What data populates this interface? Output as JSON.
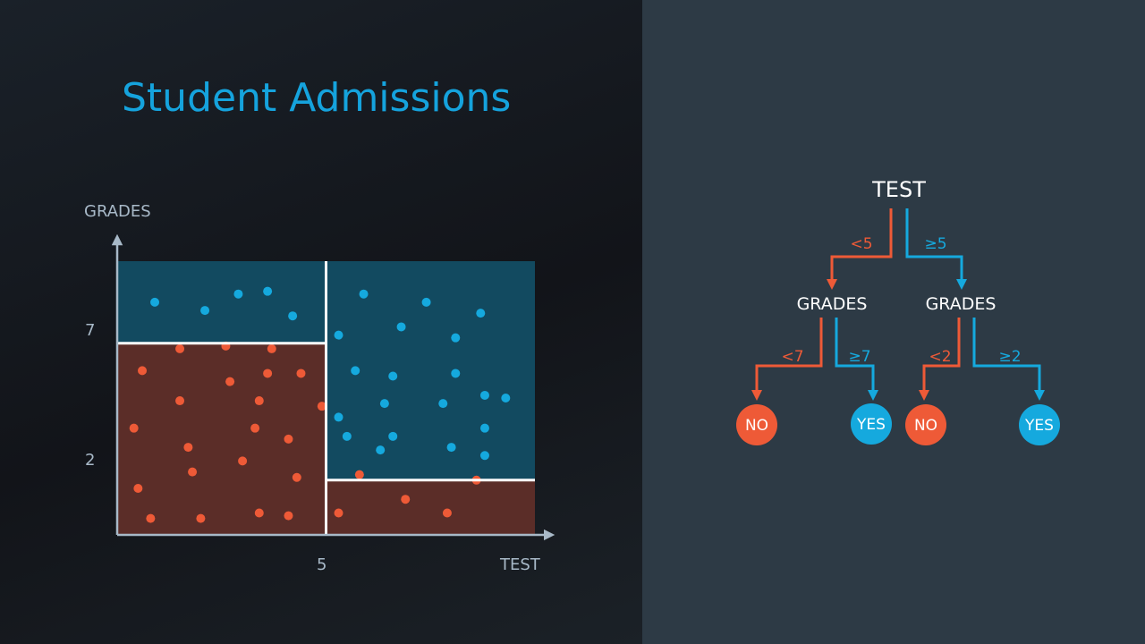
{
  "title": "Student Admissions",
  "colors": {
    "blue": "#15a9de",
    "red": "#ee5a37",
    "blue_region": "#124a60",
    "red_region": "#5b2d28",
    "axis": "#a8b9c8",
    "divider": "#ffffff",
    "tree_text": "#ffffff"
  },
  "chart_data": {
    "type": "scatter",
    "xlabel": "TEST",
    "ylabel": "GRADES",
    "xlim": [
      0,
      10
    ],
    "ylim": [
      0,
      10
    ],
    "x_ticks": [
      "5"
    ],
    "y_ticks": [
      "7",
      "2"
    ],
    "regions": [
      {
        "label": "NO",
        "x": [
          0,
          5
        ],
        "y": [
          0,
          7
        ]
      },
      {
        "label": "YES",
        "x": [
          0,
          5
        ],
        "y": [
          7,
          10
        ]
      },
      {
        "label": "NO",
        "x": [
          5,
          10
        ],
        "y": [
          0,
          2
        ]
      },
      {
        "label": "YES",
        "x": [
          5,
          10
        ],
        "y": [
          2,
          10
        ]
      }
    ],
    "series": [
      {
        "color": "blue",
        "points": [
          [
            0.9,
            8.5
          ],
          [
            2.1,
            8.2
          ],
          [
            2.9,
            8.8
          ],
          [
            3.6,
            8.9
          ],
          [
            4.2,
            8.0
          ],
          [
            5.9,
            8.8
          ],
          [
            7.4,
            8.5
          ],
          [
            8.7,
            8.1
          ],
          [
            6.8,
            7.6
          ],
          [
            8.1,
            7.2
          ],
          [
            5.3,
            7.3
          ],
          [
            5.7,
            6.0
          ],
          [
            6.6,
            5.8
          ],
          [
            8.1,
            5.9
          ],
          [
            8.8,
            5.1
          ],
          [
            9.3,
            5.0
          ],
          [
            6.4,
            4.8
          ],
          [
            7.8,
            4.8
          ],
          [
            5.3,
            4.3
          ],
          [
            5.5,
            3.6
          ],
          [
            6.6,
            3.6
          ],
          [
            8.8,
            3.9
          ],
          [
            6.3,
            3.1
          ],
          [
            8.0,
            3.2
          ],
          [
            8.8,
            2.9
          ]
        ]
      },
      {
        "color": "red",
        "points": [
          [
            1.5,
            6.8
          ],
          [
            2.6,
            6.9
          ],
          [
            3.7,
            6.8
          ],
          [
            0.6,
            6.0
          ],
          [
            3.6,
            5.9
          ],
          [
            4.4,
            5.9
          ],
          [
            2.7,
            5.6
          ],
          [
            1.5,
            4.9
          ],
          [
            3.4,
            4.9
          ],
          [
            4.9,
            4.7
          ],
          [
            0.4,
            3.9
          ],
          [
            3.3,
            3.9
          ],
          [
            4.1,
            3.5
          ],
          [
            1.7,
            3.2
          ],
          [
            1.8,
            2.3
          ],
          [
            3.0,
            2.7
          ],
          [
            4.3,
            2.1
          ],
          [
            0.5,
            1.7
          ],
          [
            0.8,
            0.6
          ],
          [
            2.0,
            0.6
          ],
          [
            3.4,
            0.8
          ],
          [
            4.1,
            0.7
          ],
          [
            5.8,
            2.2
          ],
          [
            8.6,
            2.0
          ],
          [
            6.9,
            1.3
          ],
          [
            5.3,
            0.8
          ],
          [
            7.9,
            0.8
          ]
        ]
      }
    ]
  },
  "tree": {
    "root": "TEST",
    "left_edge": "<5",
    "right_edge": "≥5",
    "left_node": "GRADES",
    "right_node": "GRADES",
    "ll_edge": "<7",
    "lr_edge": "≥7",
    "rl_edge": "<2",
    "rr_edge": "≥2",
    "leaf1": "NO",
    "leaf2": "YES",
    "leaf3": "NO",
    "leaf4": "YES"
  }
}
